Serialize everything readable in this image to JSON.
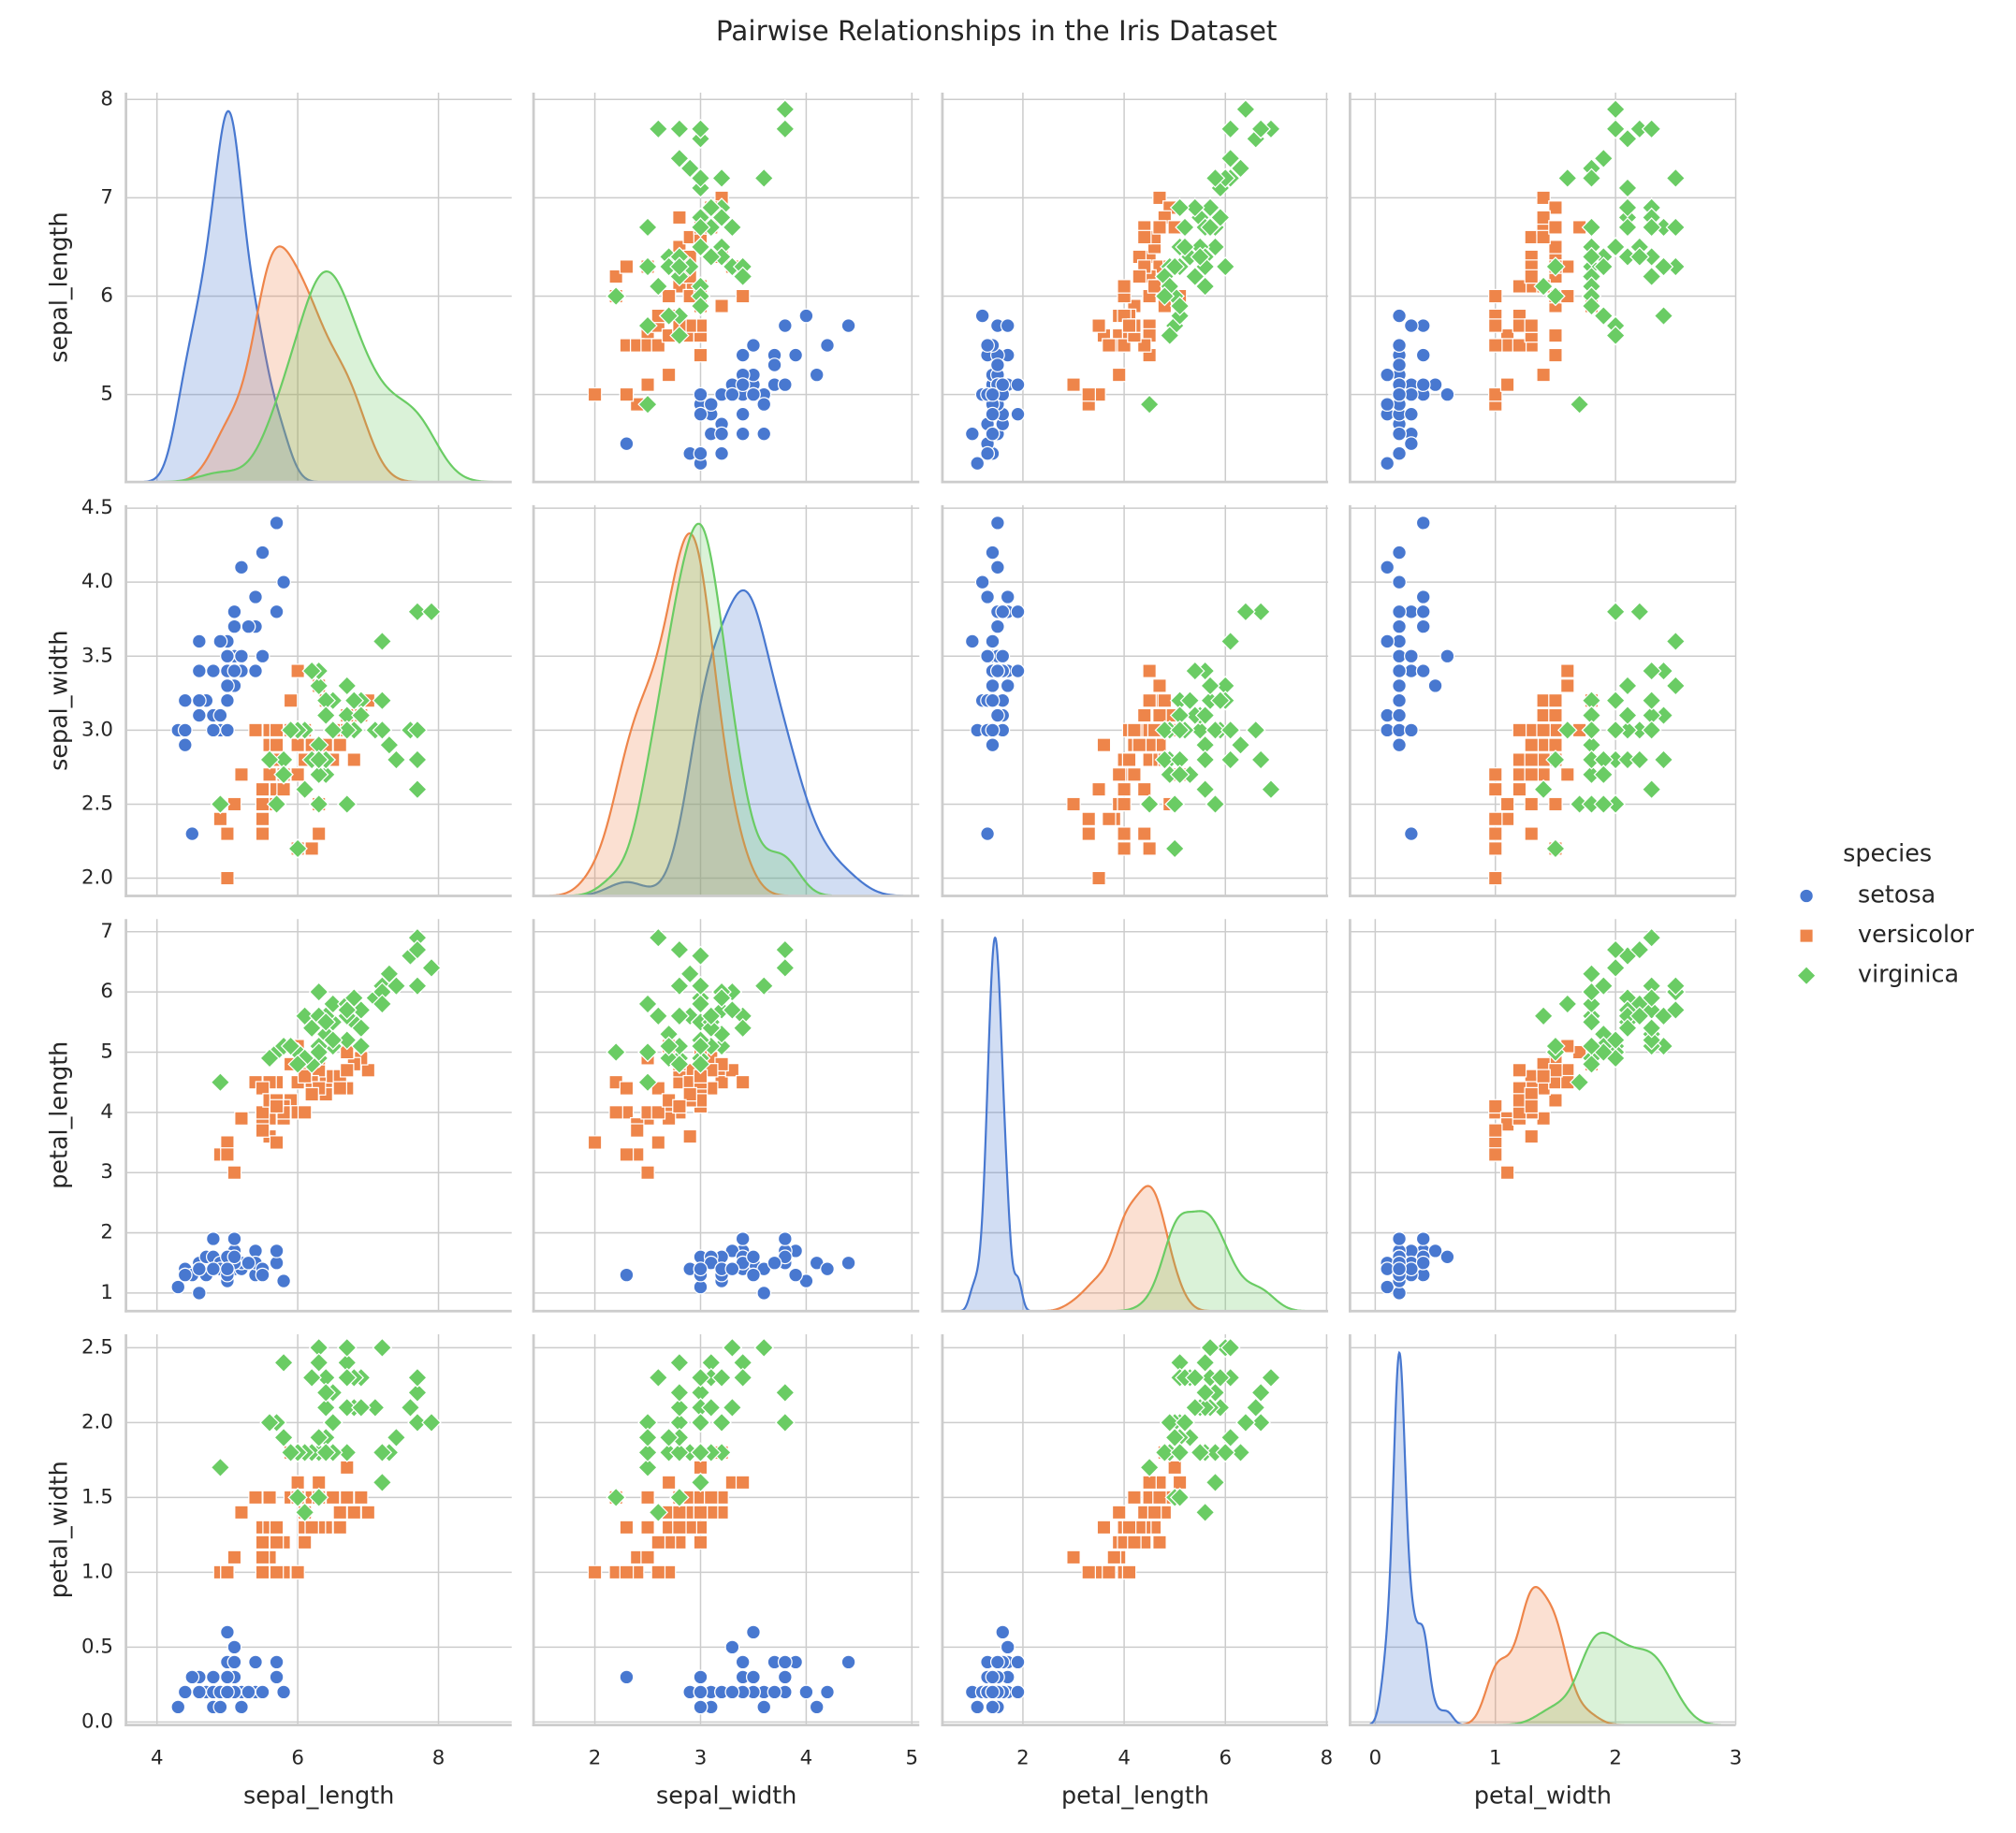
{
  "chart_data": {
    "type": "pairplot",
    "title": "Pairwise Relationships in the Iris Dataset",
    "legend_title": "species",
    "legend": "right",
    "grid": true,
    "variables": [
      "sepal_length",
      "sepal_width",
      "petal_length",
      "petal_width"
    ],
    "axes": [
      {
        "xlim": [
          3.56,
          9.04
        ],
        "xticks": [
          4,
          6,
          8
        ],
        "ylim": [
          4.11,
          8.07
        ],
        "yticks": [
          5,
          6,
          7,
          8
        ]
      },
      {
        "xlim": [
          1.42,
          5.07
        ],
        "xticks": [
          2,
          3,
          4,
          5
        ],
        "ylim": [
          1.88,
          4.52
        ],
        "yticks": [
          {
            "value": 2,
            "label": "2.0"
          },
          2.5,
          {
            "value": 3,
            "label": "3.0"
          },
          3.5,
          {
            "value": 4,
            "label": "4.0"
          },
          4.5
        ]
      },
      {
        "xlim": [
          0.41,
          8.03
        ],
        "xticks": [
          2,
          4,
          6,
          8
        ],
        "ylim": [
          0.7,
          7.21
        ],
        "yticks": [
          1,
          2,
          3,
          4,
          5,
          6,
          7
        ]
      },
      {
        "xlim": [
          -0.21,
          3.0
        ],
        "xticks": [
          0,
          1,
          2,
          3
        ],
        "ylim": [
          -0.02,
          2.59
        ],
        "yticks": [
          {
            "value": 0,
            "label": "0.0"
          },
          0.5,
          {
            "value": 1,
            "label": "1.0"
          },
          1.5,
          {
            "value": 2,
            "label": "2.0"
          },
          2.5
        ]
      }
    ],
    "series": [
      {
        "name": "setosa",
        "color": "#4878d0",
        "marker": "circle",
        "sepal_length": [
          5.1,
          4.9,
          4.7,
          4.6,
          5.0,
          5.4,
          4.6,
          5.0,
          4.4,
          4.9,
          5.4,
          4.8,
          4.8,
          4.3,
          5.8,
          5.7,
          5.4,
          5.1,
          5.7,
          5.1,
          5.4,
          5.1,
          4.6,
          5.1,
          4.8,
          5.0,
          5.0,
          5.2,
          5.2,
          4.7,
          4.8,
          5.4,
          5.2,
          5.5,
          4.9,
          5.0,
          5.5,
          4.9,
          4.4,
          5.1,
          5.0,
          4.5,
          4.4,
          5.0,
          5.1,
          4.8,
          5.1,
          4.6,
          5.3,
          5.0
        ],
        "sepal_width": [
          3.5,
          3.0,
          3.2,
          3.1,
          3.6,
          3.9,
          3.4,
          3.4,
          2.9,
          3.1,
          3.7,
          3.4,
          3.0,
          3.0,
          4.0,
          4.4,
          3.9,
          3.5,
          3.8,
          3.8,
          3.4,
          3.7,
          3.6,
          3.3,
          3.4,
          3.0,
          3.4,
          3.5,
          3.4,
          3.2,
          3.1,
          3.4,
          4.1,
          4.2,
          3.1,
          3.2,
          3.5,
          3.6,
          3.0,
          3.4,
          3.5,
          2.3,
          3.2,
          3.5,
          3.8,
          3.0,
          3.8,
          3.2,
          3.7,
          3.3
        ],
        "petal_length": [
          1.4,
          1.4,
          1.3,
          1.5,
          1.4,
          1.7,
          1.4,
          1.5,
          1.4,
          1.5,
          1.5,
          1.6,
          1.4,
          1.1,
          1.2,
          1.5,
          1.3,
          1.4,
          1.7,
          1.5,
          1.7,
          1.5,
          1.0,
          1.7,
          1.9,
          1.6,
          1.6,
          1.5,
          1.4,
          1.6,
          1.6,
          1.5,
          1.5,
          1.4,
          1.5,
          1.2,
          1.3,
          1.4,
          1.3,
          1.5,
          1.3,
          1.3,
          1.3,
          1.6,
          1.9,
          1.4,
          1.6,
          1.4,
          1.5,
          1.4
        ],
        "petal_width": [
          0.2,
          0.2,
          0.2,
          0.2,
          0.2,
          0.4,
          0.3,
          0.2,
          0.2,
          0.1,
          0.2,
          0.2,
          0.1,
          0.1,
          0.2,
          0.4,
          0.4,
          0.3,
          0.3,
          0.3,
          0.2,
          0.4,
          0.2,
          0.5,
          0.2,
          0.2,
          0.4,
          0.2,
          0.2,
          0.2,
          0.2,
          0.4,
          0.1,
          0.2,
          0.2,
          0.2,
          0.2,
          0.1,
          0.2,
          0.2,
          0.3,
          0.3,
          0.2,
          0.6,
          0.4,
          0.3,
          0.2,
          0.2,
          0.2,
          0.2
        ]
      },
      {
        "name": "versicolor",
        "color": "#ee854a",
        "marker": "square",
        "sepal_length": [
          7.0,
          6.4,
          6.9,
          5.5,
          6.5,
          5.7,
          6.3,
          4.9,
          6.6,
          5.2,
          5.0,
          5.9,
          6.0,
          6.1,
          5.6,
          6.7,
          5.6,
          5.8,
          6.2,
          5.6,
          5.9,
          6.1,
          6.3,
          6.1,
          6.4,
          6.6,
          6.8,
          6.7,
          6.0,
          5.7,
          5.5,
          5.5,
          5.8,
          6.0,
          5.4,
          6.0,
          6.7,
          6.3,
          5.6,
          5.5,
          5.5,
          6.1,
          5.8,
          5.0,
          5.6,
          5.7,
          5.7,
          6.2,
          5.1,
          5.7
        ],
        "sepal_width": [
          3.2,
          3.2,
          3.1,
          2.3,
          2.8,
          2.8,
          3.3,
          2.4,
          2.9,
          2.7,
          2.0,
          3.0,
          2.2,
          2.9,
          2.9,
          3.1,
          3.0,
          2.7,
          2.2,
          2.5,
          3.2,
          2.8,
          2.5,
          2.8,
          2.9,
          3.0,
          2.8,
          3.0,
          2.9,
          2.6,
          2.4,
          2.4,
          2.7,
          2.7,
          3.0,
          3.4,
          3.1,
          2.3,
          3.0,
          2.5,
          2.6,
          3.0,
          2.6,
          2.3,
          2.7,
          3.0,
          2.9,
          2.9,
          2.5,
          2.8
        ],
        "petal_length": [
          4.7,
          4.5,
          4.9,
          4.0,
          4.6,
          4.5,
          4.7,
          3.3,
          4.6,
          3.9,
          3.5,
          4.2,
          4.0,
          4.7,
          3.6,
          4.4,
          4.5,
          4.1,
          4.5,
          3.9,
          4.8,
          4.0,
          4.9,
          4.7,
          4.3,
          4.4,
          4.8,
          5.0,
          4.5,
          3.5,
          3.8,
          3.7,
          3.9,
          5.1,
          4.5,
          4.5,
          4.7,
          4.4,
          4.1,
          4.0,
          4.4,
          4.6,
          4.0,
          3.3,
          4.2,
          4.2,
          4.2,
          4.3,
          3.0,
          4.1
        ],
        "petal_width": [
          1.4,
          1.5,
          1.5,
          1.3,
          1.5,
          1.3,
          1.6,
          1.0,
          1.3,
          1.4,
          1.0,
          1.5,
          1.0,
          1.4,
          1.3,
          1.4,
          1.5,
          1.0,
          1.5,
          1.1,
          1.8,
          1.3,
          1.5,
          1.2,
          1.3,
          1.4,
          1.4,
          1.7,
          1.5,
          1.0,
          1.1,
          1.0,
          1.2,
          1.6,
          1.5,
          1.6,
          1.5,
          1.3,
          1.3,
          1.3,
          1.2,
          1.4,
          1.2,
          1.0,
          1.3,
          1.2,
          1.3,
          1.3,
          1.1,
          1.3
        ]
      },
      {
        "name": "virginica",
        "color": "#6acc64",
        "marker": "diamond",
        "sepal_length": [
          6.3,
          5.8,
          7.1,
          6.3,
          6.5,
          7.6,
          4.9,
          7.3,
          6.7,
          7.2,
          6.5,
          6.4,
          6.8,
          5.7,
          5.8,
          6.4,
          6.5,
          7.7,
          7.7,
          6.0,
          6.9,
          5.6,
          7.7,
          6.3,
          6.7,
          7.2,
          6.2,
          6.1,
          6.4,
          7.2,
          7.4,
          7.9,
          6.4,
          6.3,
          6.1,
          7.7,
          6.3,
          6.4,
          6.0,
          6.9,
          6.7,
          6.9,
          5.8,
          6.8,
          6.7,
          6.7,
          6.3,
          6.5,
          6.2,
          5.9
        ],
        "sepal_width": [
          3.3,
          2.7,
          3.0,
          2.9,
          3.0,
          3.0,
          2.5,
          2.9,
          2.5,
          3.6,
          3.2,
          2.7,
          3.0,
          2.5,
          2.8,
          3.2,
          3.0,
          3.8,
          2.6,
          2.2,
          3.2,
          2.8,
          2.8,
          2.7,
          3.3,
          3.2,
          2.8,
          3.0,
          2.8,
          3.0,
          2.8,
          3.8,
          2.8,
          2.8,
          2.6,
          3.0,
          3.4,
          3.1,
          3.0,
          3.1,
          3.1,
          3.1,
          2.7,
          3.2,
          3.3,
          3.0,
          2.5,
          3.0,
          3.4,
          3.0
        ],
        "petal_length": [
          6.0,
          5.1,
          5.9,
          5.6,
          5.8,
          6.6,
          4.5,
          6.3,
          5.8,
          6.1,
          5.1,
          5.3,
          5.5,
          5.0,
          5.1,
          5.3,
          5.5,
          6.7,
          6.9,
          5.0,
          5.7,
          4.9,
          6.7,
          4.9,
          5.7,
          6.0,
          4.8,
          4.9,
          5.6,
          5.8,
          6.1,
          6.4,
          5.6,
          5.1,
          5.6,
          6.1,
          5.6,
          5.5,
          4.8,
          5.4,
          5.6,
          5.1,
          5.1,
          5.9,
          5.7,
          5.2,
          5.0,
          5.2,
          5.4,
          5.1
        ],
        "petal_width": [
          2.5,
          1.9,
          2.1,
          1.8,
          2.2,
          2.1,
          1.7,
          1.8,
          1.8,
          2.5,
          2.0,
          1.9,
          2.1,
          2.0,
          2.4,
          2.3,
          1.8,
          2.2,
          2.3,
          1.5,
          2.3,
          2.0,
          2.0,
          1.8,
          2.1,
          1.8,
          1.8,
          1.8,
          2.1,
          1.6,
          1.9,
          2.0,
          2.2,
          1.5,
          1.4,
          2.3,
          2.4,
          1.8,
          1.8,
          2.1,
          2.4,
          2.3,
          1.9,
          2.3,
          2.5,
          2.3,
          1.9,
          2.0,
          2.3,
          1.8
        ]
      }
    ]
  }
}
